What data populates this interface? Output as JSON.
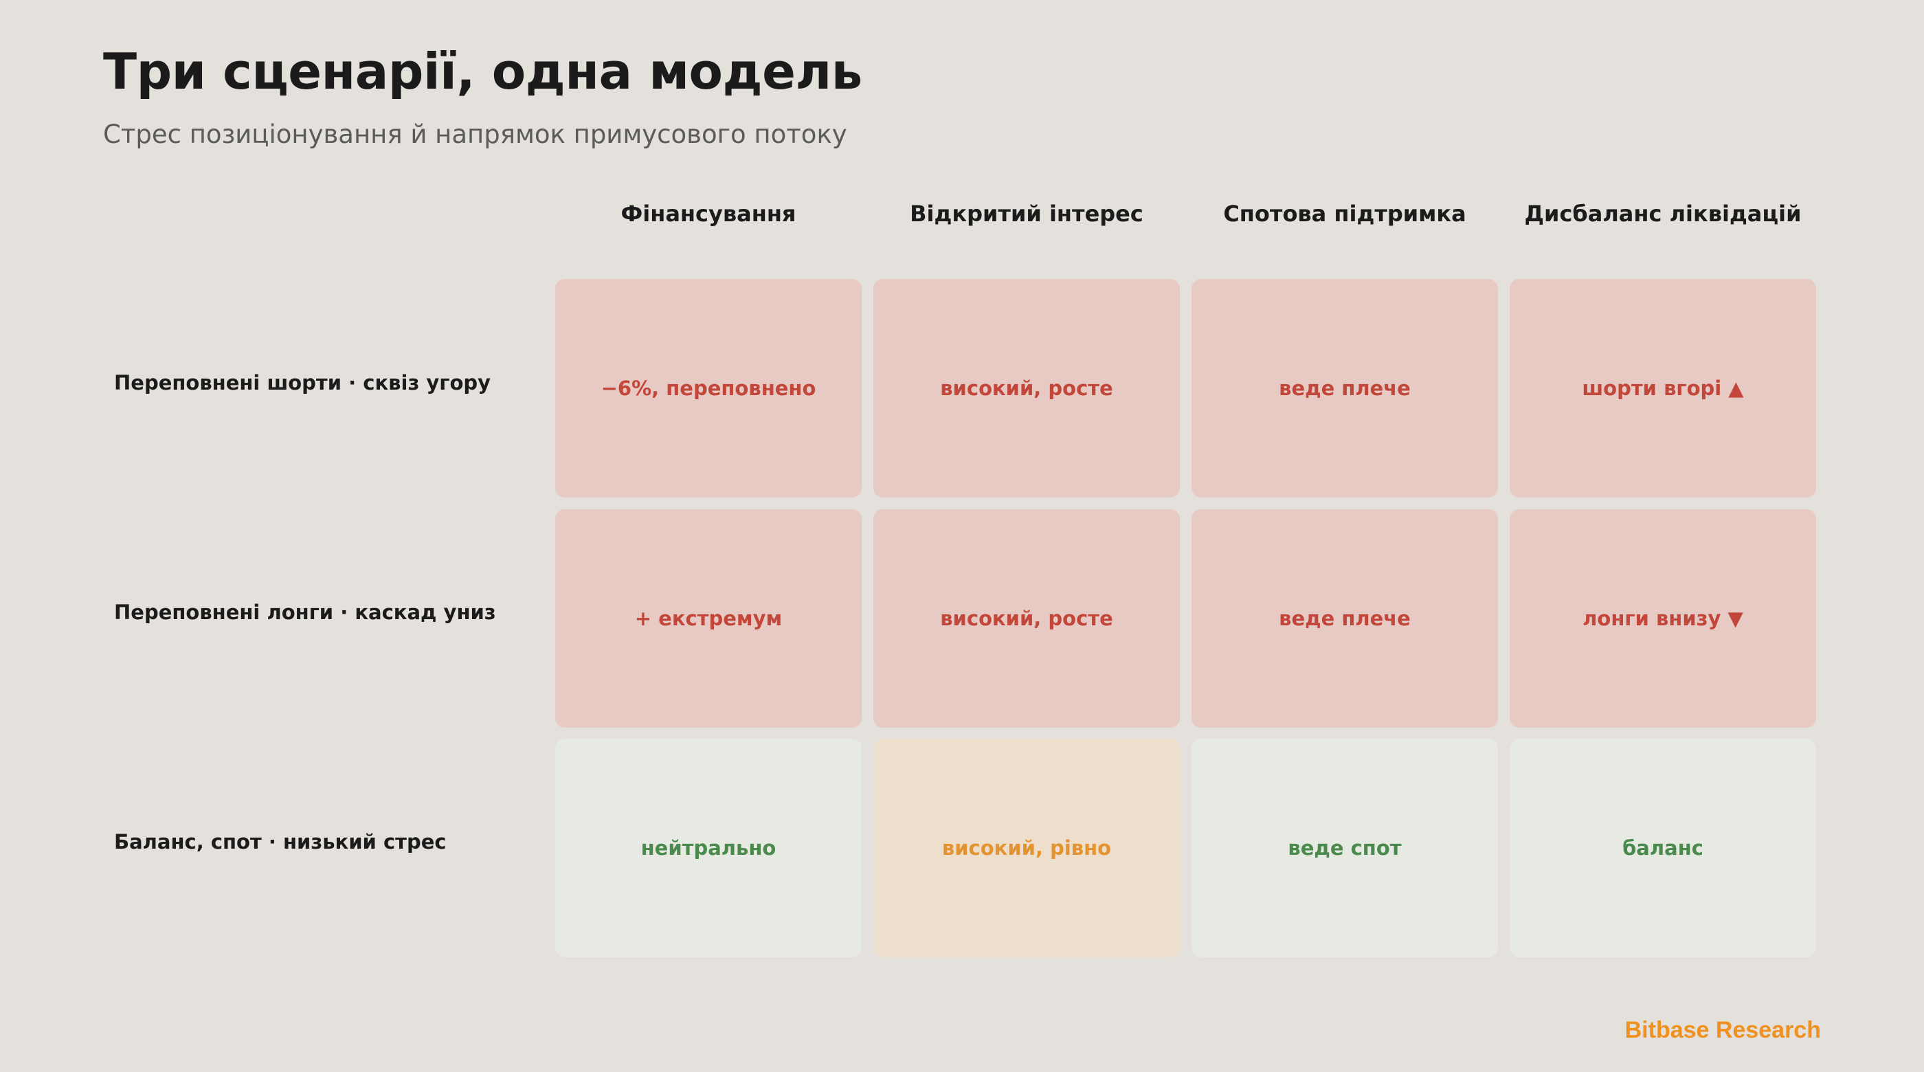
{
  "header": {
    "title": "Три сценарії, одна модель",
    "subtitle": "Стрес позиціонування й напрямок примусового потоку"
  },
  "columns": [
    "Фінансування",
    "Відкритий інтерес",
    "Спотова підтримка",
    "Дисбаланс ліквідацій"
  ],
  "rows": [
    {
      "label": "Переповнені шорти · сквіз угору",
      "cells": [
        {
          "text": "−6%, переповнено",
          "status": "risk"
        },
        {
          "text": "високий, росте",
          "status": "risk"
        },
        {
          "text": "веде плече",
          "status": "risk"
        },
        {
          "text": "шорти вгорі ▲",
          "status": "risk"
        }
      ]
    },
    {
      "label": "Переповнені лонги · каскад униз",
      "cells": [
        {
          "text": "+ екстремум",
          "status": "risk"
        },
        {
          "text": "високий, росте",
          "status": "risk"
        },
        {
          "text": "веде плече",
          "status": "risk"
        },
        {
          "text": "лонги внизу ▼",
          "status": "risk"
        }
      ]
    },
    {
      "label": "Баланс, спот · низький стрес",
      "cells": [
        {
          "text": "нейтрально",
          "status": "calm"
        },
        {
          "text": "високий, рівно",
          "status": "warn"
        },
        {
          "text": "веде спот",
          "status": "calm"
        },
        {
          "text": "баланс",
          "status": "calm"
        }
      ]
    }
  ],
  "colors": {
    "background": "#e4e0db",
    "risk_fill": "#e8cac4",
    "risk_text": "#c2473a",
    "calm_fill": "#e7eae3",
    "calm_text": "#4a8a4c",
    "warn_fill": "#eedfcd",
    "warn_text": "#e39430",
    "brand": "#f0901e"
  },
  "footer": {
    "brand": "Bitbase Research"
  }
}
